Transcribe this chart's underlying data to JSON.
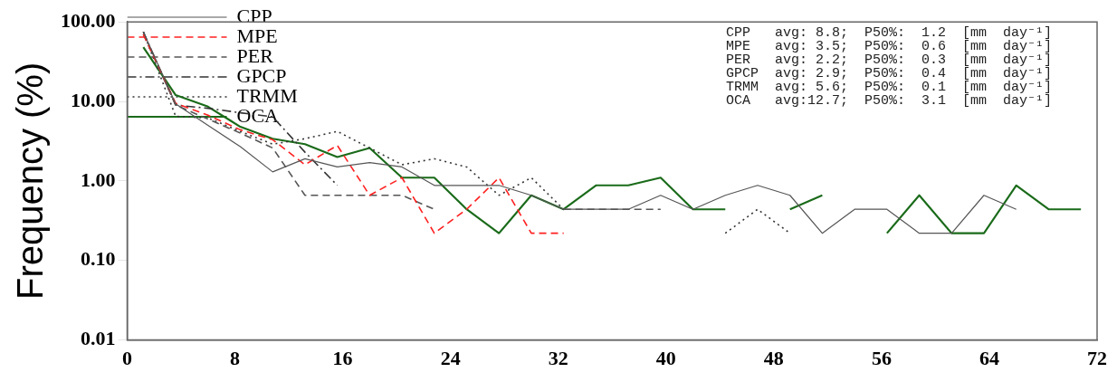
{
  "chart_data": {
    "type": "line",
    "ylabel": "Frequency (%)",
    "x": [
      1.2,
      3.6,
      6.0,
      8.4,
      10.8,
      13.2,
      15.6,
      18.0,
      20.4,
      22.8,
      25.2,
      27.6,
      30.0,
      32.4,
      34.8,
      37.2,
      39.6,
      42.0,
      44.4,
      46.8,
      49.2,
      51.6,
      54.0,
      56.4,
      58.8,
      61.2,
      63.6,
      66.0,
      68.4,
      70.8
    ],
    "series": [
      {
        "name": "CPP",
        "color": "#555555",
        "line_style": "solid",
        "values": [
          75,
          9.3,
          5,
          2.7,
          1.3,
          1.9,
          1.5,
          1.7,
          1.5,
          0.88,
          0.88,
          0.88,
          0.66,
          0.44,
          0.44,
          0.44,
          0.66,
          0.44,
          0.66,
          0.88,
          0.66,
          0.22,
          0.44,
          0.44,
          0.22,
          0.22,
          0.66,
          0.44,
          null,
          null
        ]
      },
      {
        "name": "MPE",
        "color": "#ff2020",
        "line_style": "dashed",
        "values": [
          70,
          9.5,
          6.7,
          4.4,
          3.3,
          1.6,
          2.8,
          0.66,
          1.1,
          0.22,
          0.44,
          1.1,
          0.22,
          0.22,
          null,
          null,
          null,
          null,
          null,
          null,
          null,
          null,
          null,
          null,
          null,
          null,
          null,
          null,
          null,
          null
        ]
      },
      {
        "name": "PER",
        "color": "#555555",
        "line_style": "dashed",
        "values": [
          70,
          9,
          6,
          4,
          2.6,
          0.66,
          0.66,
          0.66,
          0.66,
          0.44,
          null,
          null,
          null,
          0.44,
          0.44,
          0.44,
          0.44,
          null,
          null,
          null,
          null,
          null,
          null,
          null,
          null,
          null,
          null,
          null,
          null,
          null
        ]
      },
      {
        "name": "GPCP",
        "color": "#333333",
        "line_style": "dashdot",
        "values": [
          75,
          9,
          8.2,
          7.2,
          6.4,
          2.3,
          0.88,
          null,
          null,
          null,
          null,
          null,
          null,
          null,
          null,
          null,
          null,
          null,
          null,
          null,
          null,
          null,
          null,
          null,
          null,
          null,
          null,
          null,
          null,
          null
        ]
      },
      {
        "name": "TRMM",
        "color": "#333333",
        "line_style": "dotted",
        "values": [
          75,
          6.5,
          6.2,
          4.2,
          2.9,
          3.4,
          4.2,
          2.6,
          1.6,
          1.9,
          1.5,
          0.66,
          1.1,
          0.44,
          null,
          null,
          null,
          null,
          0.22,
          0.44,
          0.22,
          null,
          null,
          null,
          null,
          null,
          null,
          null,
          null,
          null
        ]
      },
      {
        "name": "OCA",
        "color": "#1a6b1a",
        "line_style": "solid",
        "values": [
          48,
          12,
          8.6,
          4.8,
          3.4,
          2.9,
          2.0,
          2.6,
          1.1,
          1.1,
          0.44,
          0.22,
          0.66,
          0.44,
          0.88,
          0.88,
          1.1,
          0.44,
          0.44,
          null,
          0.44,
          0.66,
          null,
          0.22,
          0.66,
          0.22,
          0.22,
          0.88,
          0.44,
          0.44
        ]
      }
    ],
    "xlim": [
      0,
      72
    ],
    "xticks": [
      0,
      8,
      16,
      24,
      32,
      40,
      48,
      56,
      64,
      72
    ],
    "log": "y",
    "ylim": [
      0.01,
      100
    ],
    "yticks": [
      {
        "value": 0.01,
        "label": "0.01"
      },
      {
        "value": 0.1,
        "label": "0.10"
      },
      {
        "value": 1,
        "label": "1.00"
      },
      {
        "value": 10,
        "label": "10.00"
      },
      {
        "value": 100,
        "label": "100.00"
      }
    ],
    "grid": false,
    "legend": "top left",
    "annotations": [
      "CPP   avg: 8.8;  P50%:  1.2  [mm  day⁻¹]",
      "MPE   avg: 3.5;  P50%:  0.6  [mm  day⁻¹]",
      "PER   avg: 2.2;  P50%:  0.3  [mm  day⁻¹]",
      "GPCP  avg: 2.9;  P50%:  0.4  [mm  day⁻¹]",
      "TRMM  avg: 5.6;  P50%:  0.1  [mm  day⁻¹]",
      "OCA   avg:12.7;  P50%:  3.1  [mm  day⁻¹]"
    ]
  }
}
